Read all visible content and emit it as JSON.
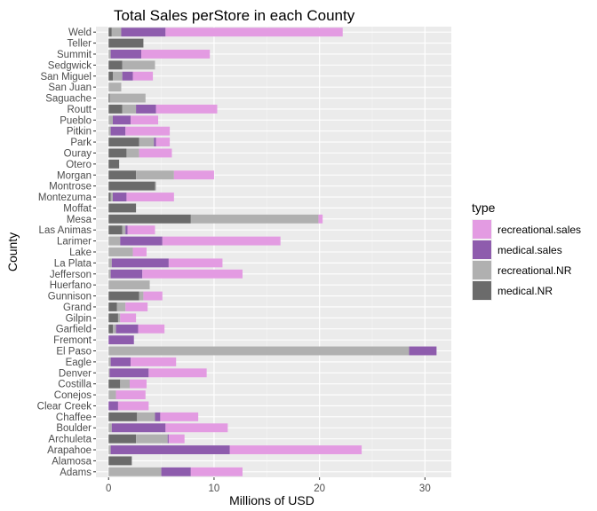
{
  "chart_data": {
    "type": "bar",
    "orientation": "horizontal",
    "stacked": true,
    "title": "Total Sales perStore in each County",
    "xlabel": "Millions of USD",
    "ylabel": "County",
    "xlim": [
      -1.2,
      32.5
    ],
    "xticks": [
      0,
      10,
      20,
      30
    ],
    "grid": true,
    "legend": {
      "title": "type",
      "position": "right",
      "entries": [
        {
          "name": "recreational.sales",
          "color": "#e39be2"
        },
        {
          "name": "medical.sales",
          "color": "#8e5cad"
        },
        {
          "name": "recreational.NR",
          "color": "#b0b0b0"
        },
        {
          "name": "medical.NR",
          "color": "#6b6b6b"
        }
      ]
    },
    "categories": [
      "Adams",
      "Alamosa",
      "Arapahoe",
      "Archuleta",
      "Boulder",
      "Chaffee",
      "Clear Creek",
      "Conejos",
      "Costilla",
      "Denver",
      "Eagle",
      "El Paso",
      "Fremont",
      "Garfield",
      "Gilpin",
      "Grand",
      "Gunnison",
      "Huerfano",
      "Jefferson",
      "La Plata",
      "Lake",
      "Larimer",
      "Las Animas",
      "Mesa",
      "Moffat",
      "Montezuma",
      "Montrose",
      "Morgan",
      "Otero",
      "Ouray",
      "Park",
      "Pitkin",
      "Pueblo",
      "Routt",
      "Saguache",
      "San Juan",
      "San Miguel",
      "Sedgwick",
      "Summit",
      "Teller",
      "Weld"
    ],
    "series": [
      {
        "name": "medical.NR",
        "values": [
          0,
          2.2,
          0,
          2.6,
          0,
          2.7,
          0,
          0,
          1.1,
          0,
          0,
          0,
          0,
          0.4,
          0.9,
          0.8,
          2.9,
          0,
          0,
          0,
          0,
          0,
          1.3,
          7.8,
          2.6,
          0.2,
          4.4,
          2.6,
          1.0,
          1.7,
          2.9,
          0,
          0,
          1.3,
          0.1,
          0,
          0.4,
          1.3,
          0,
          3.3,
          0.3
        ]
      },
      {
        "name": "recreational.NR",
        "values": [
          5.0,
          0,
          0.2,
          3.0,
          0.3,
          1.7,
          0,
          0.7,
          0.9,
          0.1,
          0.2,
          28.5,
          0,
          0.3,
          0.2,
          0.8,
          0.4,
          3.9,
          0.2,
          0.3,
          2.3,
          1.1,
          0.3,
          12.1,
          0,
          0.2,
          0.1,
          3.6,
          0,
          1.2,
          1.4,
          0.2,
          0.4,
          1.3,
          3.4,
          1.2,
          0.9,
          3.1,
          0.2,
          0,
          0.9
        ]
      },
      {
        "name": "medical.sales",
        "values": [
          2.8,
          0,
          11.3,
          0.1,
          5.1,
          0.5,
          0.9,
          0,
          0,
          3.7,
          1.9,
          2.6,
          2.4,
          2.1,
          0,
          0,
          0,
          0,
          3.0,
          5.4,
          0,
          4.0,
          0.2,
          0,
          0,
          1.3,
          0,
          0,
          0,
          0,
          0.2,
          1.4,
          1.7,
          1.9,
          0,
          0,
          1.0,
          0,
          2.9,
          0,
          4.2
        ]
      },
      {
        "name": "recreational.sales",
        "values": [
          4.9,
          0,
          12.5,
          1.5,
          5.9,
          3.6,
          2.9,
          2.8,
          1.6,
          5.5,
          4.3,
          0,
          0,
          2.5,
          1.5,
          2.1,
          1.8,
          0,
          9.5,
          5.1,
          1.3,
          11.2,
          2.6,
          0.4,
          0,
          4.5,
          0,
          3.8,
          0,
          3.1,
          1.3,
          4.2,
          2.6,
          5.8,
          0,
          0,
          1.9,
          0,
          6.5,
          0,
          16.8
        ]
      }
    ]
  }
}
